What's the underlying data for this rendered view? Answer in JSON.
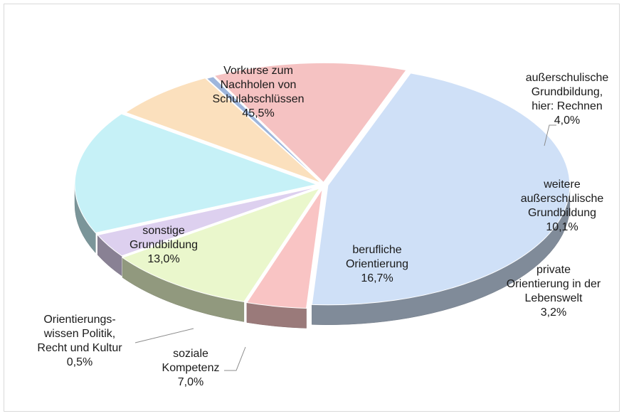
{
  "chart_data": {
    "type": "pie",
    "title": "",
    "style": "3d-exploded",
    "slices": [
      {
        "lines": [
          "Vorkurse zum",
          "Nachholen von",
          "Schulabschlüssen",
          "45,5%"
        ],
        "value": 45.5,
        "color": "#cfe0f7"
      },
      {
        "lines": [
          "außerschulische",
          "Grundbildung,",
          "hier: Rechnen",
          "4,0%"
        ],
        "value": 4.0,
        "color": "#f9c4c4"
      },
      {
        "lines": [
          "weitere",
          "außerschulische",
          "Grundbildung",
          "10,1%"
        ],
        "value": 10.1,
        "color": "#eaf7cc"
      },
      {
        "lines": [
          "private",
          "Orientierung in der",
          "Lebenswelt",
          "3,2%"
        ],
        "value": 3.2,
        "color": "#ddd0ef"
      },
      {
        "lines": [
          "berufliche",
          "Orientierung",
          "16,7%"
        ],
        "value": 16.7,
        "color": "#c6f1f7"
      },
      {
        "lines": [
          "soziale",
          "Kompetenz",
          "7,0%"
        ],
        "value": 7.0,
        "color": "#fbe0bd"
      },
      {
        "lines": [
          "Orientierungs-",
          "wissen Politik,",
          "Recht und Kultur",
          "0,5%"
        ],
        "value": 0.5,
        "color": "#9eb6dc"
      },
      {
        "lines": [
          "sonstige",
          "Grundbildung",
          "13,0%"
        ],
        "value": 13.0,
        "color": "#f5c2c2"
      }
    ]
  }
}
